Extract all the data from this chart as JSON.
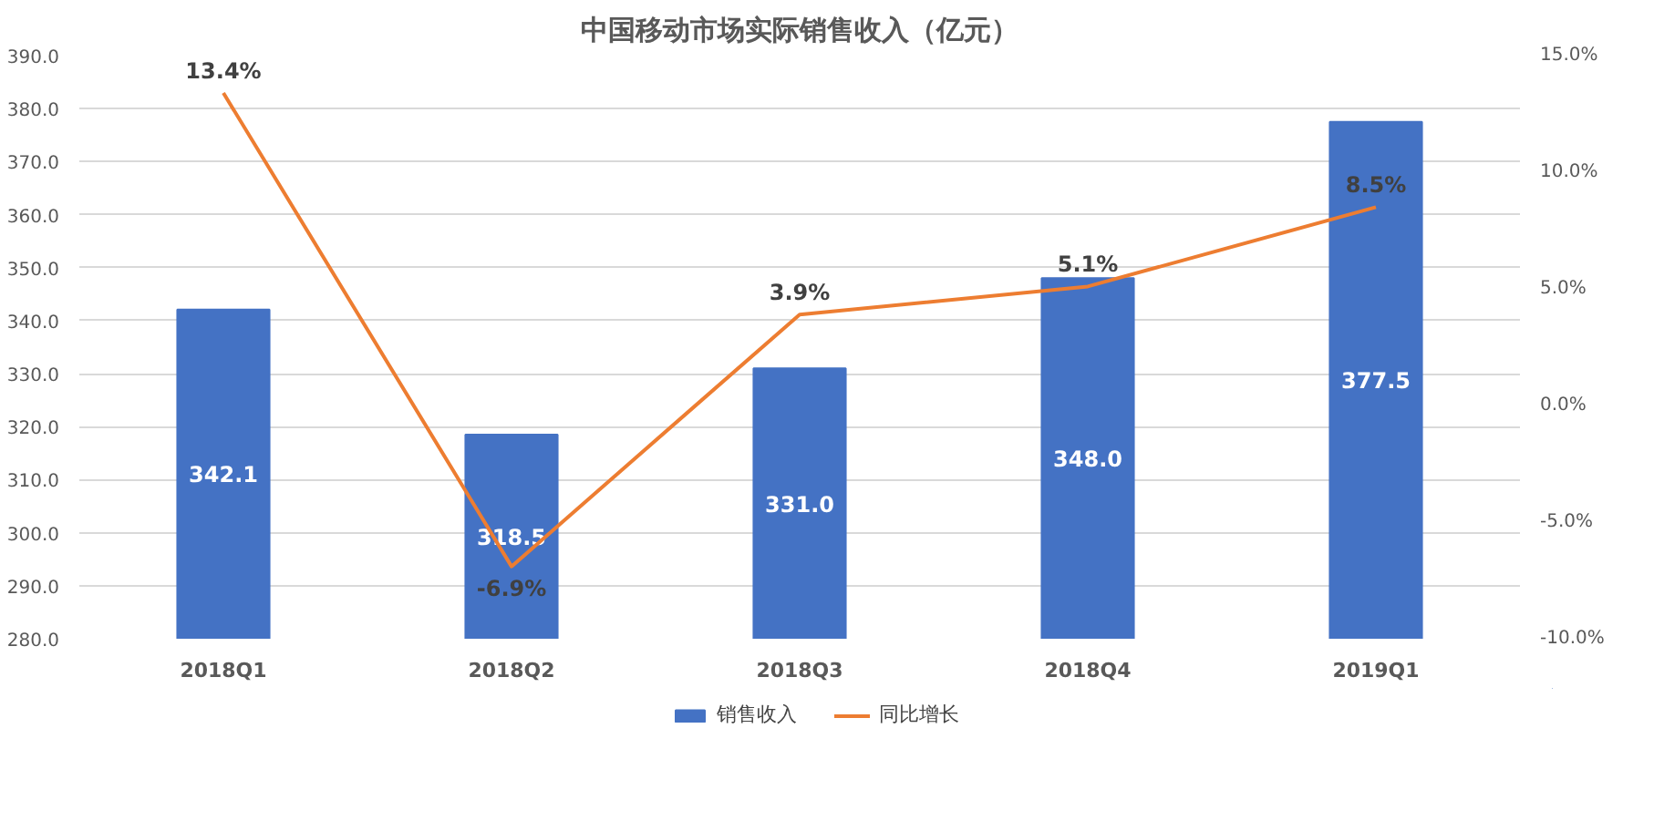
{
  "chart_data": {
    "type": "bar",
    "title": "中国移动市场实际销售收入（亿元）",
    "categories": [
      "2018Q1",
      "2018Q2",
      "2018Q3",
      "2018Q4",
      "2019Q1"
    ],
    "series": [
      {
        "name": "销售收入",
        "color": "#4472c4",
        "values": [
          342.1,
          318.5,
          331.0,
          348.0,
          377.5
        ],
        "value_labels": [
          "342.1",
          "318.5",
          "331.0",
          "348.0",
          "377.5"
        ]
      },
      {
        "name": "同比增长",
        "type": "line",
        "axis": "y2",
        "color": "#ed7d31",
        "values": [
          13.4,
          -6.9,
          3.9,
          5.1,
          8.5
        ],
        "value_labels": [
          "13.4%",
          "-6.9%",
          "3.9%",
          "5.1%",
          "8.5%"
        ]
      }
    ],
    "ylim": [
      280,
      390
    ],
    "yticks": [
      {
        "value": 280,
        "label": "280.0"
      },
      {
        "value": 290,
        "label": "290.0"
      },
      {
        "value": 300,
        "label": "300.0"
      },
      {
        "value": 310,
        "label": "310.0"
      },
      {
        "value": 320,
        "label": "320.0"
      },
      {
        "value": 330,
        "label": "330.0"
      },
      {
        "value": 340,
        "label": "340.0"
      },
      {
        "value": 350,
        "label": "350.0"
      },
      {
        "value": 360,
        "label": "360.0"
      },
      {
        "value": 370,
        "label": "370.0"
      },
      {
        "value": 380,
        "label": "380.0"
      },
      {
        "value": 390,
        "label": "390.0"
      }
    ],
    "y2lim": [
      -10,
      15
    ],
    "y2ticks": [
      {
        "value": -10,
        "label": "-10.0%"
      },
      {
        "value": -5,
        "label": "-5.0%"
      },
      {
        "value": 0,
        "label": "0.0%"
      },
      {
        "value": 5,
        "label": "5.0%"
      },
      {
        "value": 10,
        "label": "10.0%"
      },
      {
        "value": 15,
        "label": "15.0%"
      }
    ],
    "data_labels": true,
    "grid": "y",
    "legend": "bottom",
    "marker": "none",
    "line_style": "solid"
  }
}
